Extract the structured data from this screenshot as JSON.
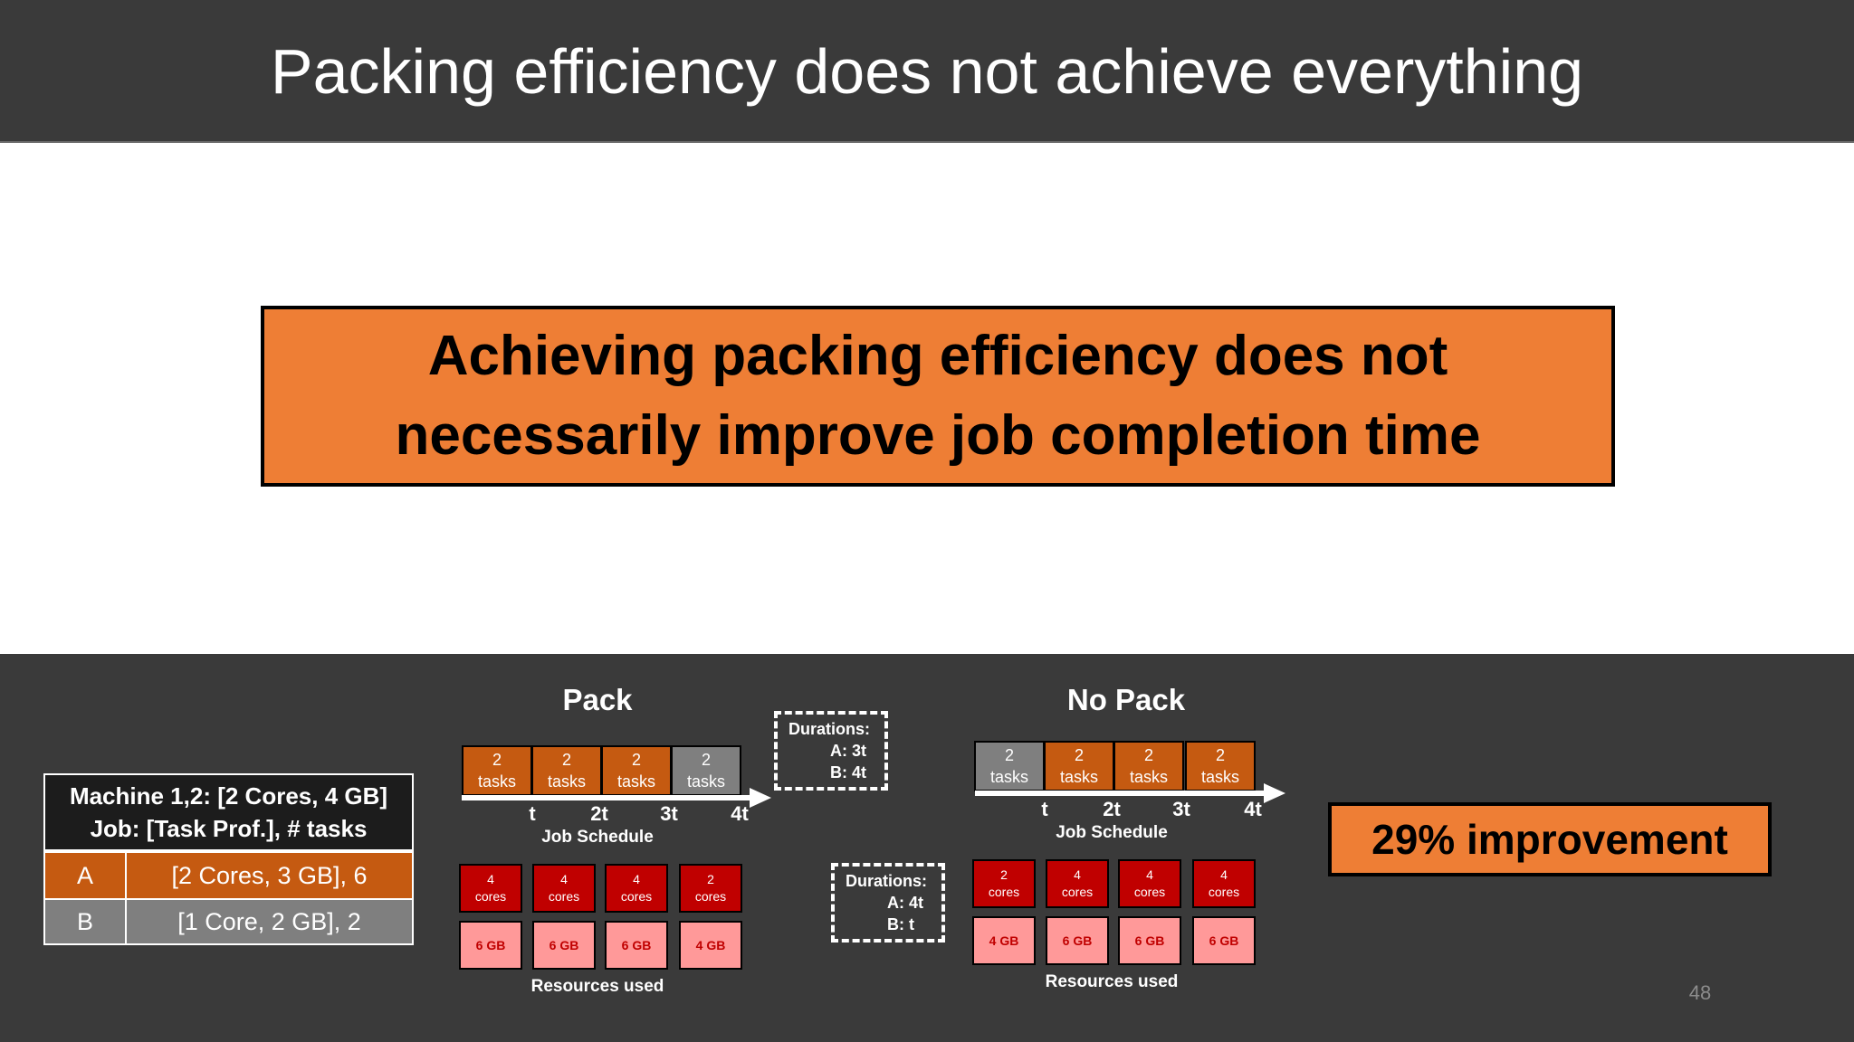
{
  "slide": {
    "title": "Packing efficiency does not achieve everything",
    "callout": {
      "line1": "Achieving packing efficiency does not",
      "line2": "necessarily improve job completion time"
    },
    "page_number": "48",
    "improvement": "29% improvement"
  },
  "job_table": {
    "header_line1": "Machine 1,2: [2 Cores, 4 GB]",
    "header_line2": "Job: [Task Prof.], # tasks",
    "rows": [
      {
        "id": "A",
        "value": "[2 Cores, 3 GB], 6"
      },
      {
        "id": "B",
        "value": "[1 Core, 2 GB], 2"
      }
    ]
  },
  "pack": {
    "title": "Pack",
    "schedule_label": "Job Schedule",
    "resources_label": "Resources used",
    "tasks": [
      {
        "count": "2",
        "unit": "tasks",
        "job": "A"
      },
      {
        "count": "2",
        "unit": "tasks",
        "job": "A"
      },
      {
        "count": "2",
        "unit": "tasks",
        "job": "A"
      },
      {
        "count": "2",
        "unit": "tasks",
        "job": "B"
      }
    ],
    "ticks": [
      "t",
      "2t",
      "3t",
      "4t"
    ],
    "cores": [
      {
        "count": "4",
        "unit": "cores"
      },
      {
        "count": "4",
        "unit": "cores"
      },
      {
        "count": "4",
        "unit": "cores"
      },
      {
        "count": "2",
        "unit": "cores"
      }
    ],
    "memory": [
      "6 GB",
      "6 GB",
      "6 GB",
      "4 GB"
    ],
    "durations": {
      "title": "Durations:",
      "a": "A: 3t",
      "b": "B: 4t"
    }
  },
  "nopack": {
    "title": "No Pack",
    "schedule_label": "Job Schedule",
    "resources_label": "Resources used",
    "tasks": [
      {
        "count": "2",
        "unit": "tasks",
        "job": "B"
      },
      {
        "count": "2",
        "unit": "tasks",
        "job": "A"
      },
      {
        "count": "2",
        "unit": "tasks",
        "job": "A"
      },
      {
        "count": "2",
        "unit": "tasks",
        "job": "A"
      }
    ],
    "ticks": [
      "t",
      "2t",
      "3t",
      "4t"
    ],
    "cores": [
      {
        "count": "2",
        "unit": "cores"
      },
      {
        "count": "4",
        "unit": "cores"
      },
      {
        "count": "4",
        "unit": "cores"
      },
      {
        "count": "4",
        "unit": "cores"
      }
    ],
    "memory": [
      "4 GB",
      "6 GB",
      "6 GB",
      "6 GB"
    ],
    "durations": {
      "title": "Durations:",
      "a": "A: 4t",
      "b": "B:  t"
    }
  },
  "colors": {
    "job_a": "#c55a11",
    "job_b": "#7f7f7f",
    "callout": "#ee7e35",
    "core": "#c00000",
    "memory": "#ff9999",
    "panel": "#3a3a3a"
  }
}
